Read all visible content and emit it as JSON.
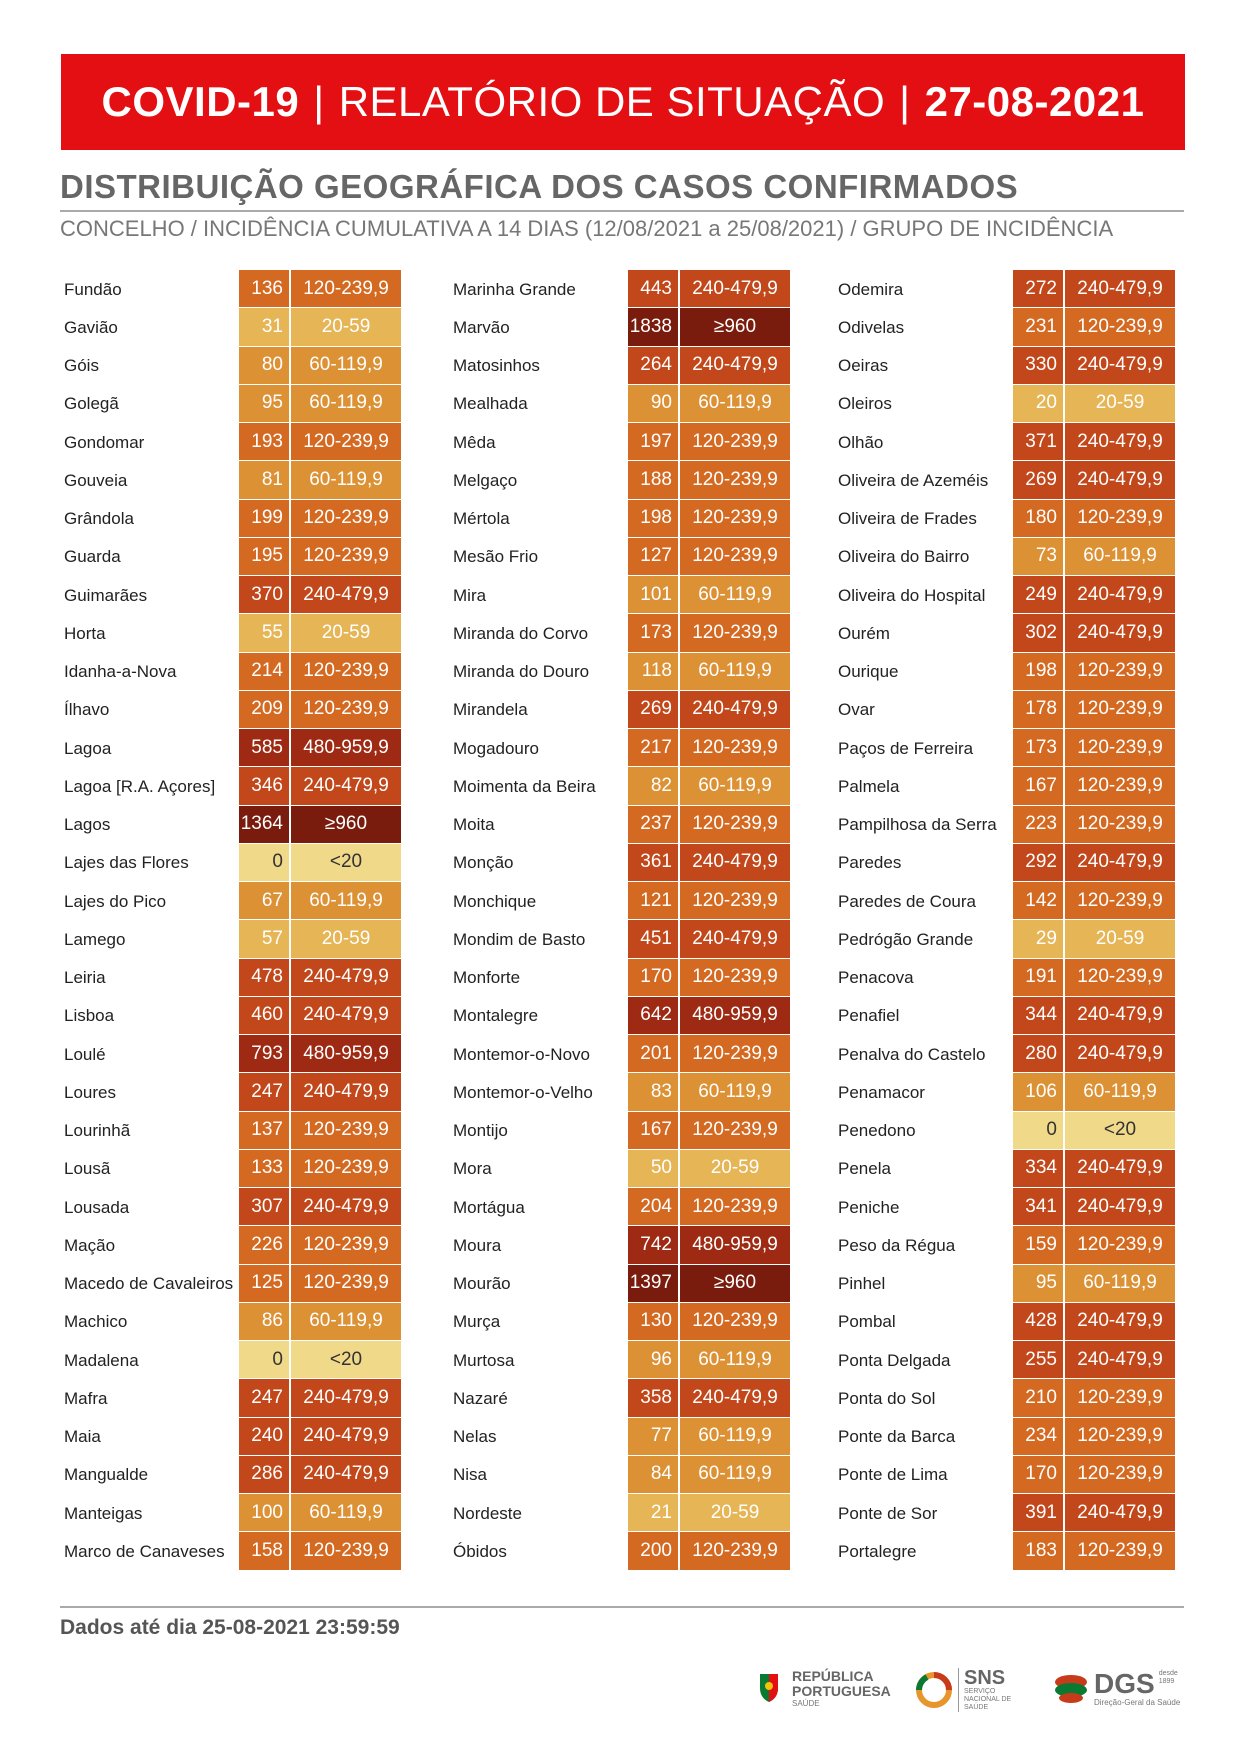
{
  "header": {
    "part1": "COVID-19",
    "part2": "RELATÓRIO DE SITUAÇÃO",
    "part3": "27-08-2021",
    "sep": "|"
  },
  "subtitle": "DISTRIBUIÇÃO GEOGRÁFICA DOS CASOS CONFIRMADOS",
  "subsubtitle": "CONCELHO / INCIDÊNCIA CUMULATIVA A 14 DIAS (12/08/2021 a 25/08/2021) / GRUPO DE INCIDÊNCIA",
  "colors": {
    "lt20": "#f1d98a",
    "20-59": "#e6b556",
    "60-119,9": "#dc9135",
    "120-239,9": "#d46a22",
    "240-479,9": "#c2471a",
    "480-959,9": "#9e2a14",
    "ge960": "#7a1c0d"
  },
  "columns": [
    [
      {
        "name": "Fundão",
        "value": "136",
        "group": "120-239,9"
      },
      {
        "name": "Gavião",
        "value": "31",
        "group": "20-59"
      },
      {
        "name": "Góis",
        "value": "80",
        "group": "60-119,9"
      },
      {
        "name": "Golegã",
        "value": "95",
        "group": "60-119,9"
      },
      {
        "name": "Gondomar",
        "value": "193",
        "group": "120-239,9"
      },
      {
        "name": "Gouveia",
        "value": "81",
        "group": "60-119,9"
      },
      {
        "name": "Grândola",
        "value": "199",
        "group": "120-239,9"
      },
      {
        "name": "Guarda",
        "value": "195",
        "group": "120-239,9"
      },
      {
        "name": "Guimarães",
        "value": "370",
        "group": "240-479,9"
      },
      {
        "name": "Horta",
        "value": "55",
        "group": "20-59"
      },
      {
        "name": "Idanha-a-Nova",
        "value": "214",
        "group": "120-239,9"
      },
      {
        "name": "Ílhavo",
        "value": "209",
        "group": "120-239,9"
      },
      {
        "name": "Lagoa",
        "value": "585",
        "group": "480-959,9"
      },
      {
        "name": "Lagoa [R.A. Açores]",
        "value": "346",
        "group": "240-479,9"
      },
      {
        "name": "Lagos",
        "value": "1364",
        "group": "≥960"
      },
      {
        "name": "Lajes das Flores",
        "value": "0",
        "group": "<20"
      },
      {
        "name": "Lajes do Pico",
        "value": "67",
        "group": "60-119,9"
      },
      {
        "name": "Lamego",
        "value": "57",
        "group": "20-59"
      },
      {
        "name": "Leiria",
        "value": "478",
        "group": "240-479,9"
      },
      {
        "name": "Lisboa",
        "value": "460",
        "group": "240-479,9"
      },
      {
        "name": "Loulé",
        "value": "793",
        "group": "480-959,9"
      },
      {
        "name": "Loures",
        "value": "247",
        "group": "240-479,9"
      },
      {
        "name": "Lourinhã",
        "value": "137",
        "group": "120-239,9"
      },
      {
        "name": "Lousã",
        "value": "133",
        "group": "120-239,9"
      },
      {
        "name": "Lousada",
        "value": "307",
        "group": "240-479,9"
      },
      {
        "name": "Mação",
        "value": "226",
        "group": "120-239,9"
      },
      {
        "name": "Macedo de Cavaleiros",
        "value": "125",
        "group": "120-239,9"
      },
      {
        "name": "Machico",
        "value": "86",
        "group": "60-119,9"
      },
      {
        "name": "Madalena",
        "value": "0",
        "group": "<20"
      },
      {
        "name": "Mafra",
        "value": "247",
        "group": "240-479,9"
      },
      {
        "name": "Maia",
        "value": "240",
        "group": "240-479,9"
      },
      {
        "name": "Mangualde",
        "value": "286",
        "group": "240-479,9"
      },
      {
        "name": "Manteigas",
        "value": "100",
        "group": "60-119,9"
      },
      {
        "name": "Marco de Canaveses",
        "value": "158",
        "group": "120-239,9"
      }
    ],
    [
      {
        "name": "Marinha Grande",
        "value": "443",
        "group": "240-479,9"
      },
      {
        "name": "Marvão",
        "value": "1838",
        "group": "≥960"
      },
      {
        "name": "Matosinhos",
        "value": "264",
        "group": "240-479,9"
      },
      {
        "name": "Mealhada",
        "value": "90",
        "group": "60-119,9"
      },
      {
        "name": "Mêda",
        "value": "197",
        "group": "120-239,9"
      },
      {
        "name": "Melgaço",
        "value": "188",
        "group": "120-239,9"
      },
      {
        "name": "Mértola",
        "value": "198",
        "group": "120-239,9"
      },
      {
        "name": "Mesão Frio",
        "value": "127",
        "group": "120-239,9"
      },
      {
        "name": "Mira",
        "value": "101",
        "group": "60-119,9"
      },
      {
        "name": "Miranda do Corvo",
        "value": "173",
        "group": "120-239,9"
      },
      {
        "name": "Miranda do Douro",
        "value": "118",
        "group": "60-119,9"
      },
      {
        "name": "Mirandela",
        "value": "269",
        "group": "240-479,9"
      },
      {
        "name": "Mogadouro",
        "value": "217",
        "group": "120-239,9"
      },
      {
        "name": "Moimenta da Beira",
        "value": "82",
        "group": "60-119,9"
      },
      {
        "name": "Moita",
        "value": "237",
        "group": "120-239,9"
      },
      {
        "name": "Monção",
        "value": "361",
        "group": "240-479,9"
      },
      {
        "name": "Monchique",
        "value": "121",
        "group": "120-239,9"
      },
      {
        "name": "Mondim de Basto",
        "value": "451",
        "group": "240-479,9"
      },
      {
        "name": "Monforte",
        "value": "170",
        "group": "120-239,9"
      },
      {
        "name": "Montalegre",
        "value": "642",
        "group": "480-959,9"
      },
      {
        "name": "Montemor-o-Novo",
        "value": "201",
        "group": "120-239,9"
      },
      {
        "name": "Montemor-o-Velho",
        "value": "83",
        "group": "60-119,9"
      },
      {
        "name": "Montijo",
        "value": "167",
        "group": "120-239,9"
      },
      {
        "name": "Mora",
        "value": "50",
        "group": "20-59"
      },
      {
        "name": "Mortágua",
        "value": "204",
        "group": "120-239,9"
      },
      {
        "name": "Moura",
        "value": "742",
        "group": "480-959,9"
      },
      {
        "name": "Mourão",
        "value": "1397",
        "group": "≥960"
      },
      {
        "name": "Murça",
        "value": "130",
        "group": "120-239,9"
      },
      {
        "name": "Murtosa",
        "value": "96",
        "group": "60-119,9"
      },
      {
        "name": "Nazaré",
        "value": "358",
        "group": "240-479,9"
      },
      {
        "name": "Nelas",
        "value": "77",
        "group": "60-119,9"
      },
      {
        "name": "Nisa",
        "value": "84",
        "group": "60-119,9"
      },
      {
        "name": "Nordeste",
        "value": "21",
        "group": "20-59"
      },
      {
        "name": "Óbidos",
        "value": "200",
        "group": "120-239,9"
      }
    ],
    [
      {
        "name": "Odemira",
        "value": "272",
        "group": "240-479,9"
      },
      {
        "name": "Odivelas",
        "value": "231",
        "group": "120-239,9"
      },
      {
        "name": "Oeiras",
        "value": "330",
        "group": "240-479,9"
      },
      {
        "name": "Oleiros",
        "value": "20",
        "group": "20-59"
      },
      {
        "name": "Olhão",
        "value": "371",
        "group": "240-479,9"
      },
      {
        "name": "Oliveira de Azeméis",
        "value": "269",
        "group": "240-479,9"
      },
      {
        "name": "Oliveira de Frades",
        "value": "180",
        "group": "120-239,9"
      },
      {
        "name": "Oliveira do Bairro",
        "value": "73",
        "group": "60-119,9"
      },
      {
        "name": "Oliveira do Hospital",
        "value": "249",
        "group": "240-479,9"
      },
      {
        "name": "Ourém",
        "value": "302",
        "group": "240-479,9"
      },
      {
        "name": "Ourique",
        "value": "198",
        "group": "120-239,9"
      },
      {
        "name": "Ovar",
        "value": "178",
        "group": "120-239,9"
      },
      {
        "name": "Paços de Ferreira",
        "value": "173",
        "group": "120-239,9"
      },
      {
        "name": "Palmela",
        "value": "167",
        "group": "120-239,9"
      },
      {
        "name": "Pampilhosa da Serra",
        "value": "223",
        "group": "120-239,9"
      },
      {
        "name": "Paredes",
        "value": "292",
        "group": "240-479,9"
      },
      {
        "name": "Paredes de Coura",
        "value": "142",
        "group": "120-239,9"
      },
      {
        "name": "Pedrógão Grande",
        "value": "29",
        "group": "20-59"
      },
      {
        "name": "Penacova",
        "value": "191",
        "group": "120-239,9"
      },
      {
        "name": "Penafiel",
        "value": "344",
        "group": "240-479,9"
      },
      {
        "name": "Penalva do Castelo",
        "value": "280",
        "group": "240-479,9"
      },
      {
        "name": "Penamacor",
        "value": "106",
        "group": "60-119,9"
      },
      {
        "name": "Penedono",
        "value": "0",
        "group": "<20"
      },
      {
        "name": "Penela",
        "value": "334",
        "group": "240-479,9"
      },
      {
        "name": "Peniche",
        "value": "341",
        "group": "240-479,9"
      },
      {
        "name": "Peso da Régua",
        "value": "159",
        "group": "120-239,9"
      },
      {
        "name": "Pinhel",
        "value": "95",
        "group": "60-119,9"
      },
      {
        "name": "Pombal",
        "value": "428",
        "group": "240-479,9"
      },
      {
        "name": "Ponta Delgada",
        "value": "255",
        "group": "240-479,9"
      },
      {
        "name": "Ponta do Sol",
        "value": "210",
        "group": "120-239,9"
      },
      {
        "name": "Ponte da Barca",
        "value": "234",
        "group": "120-239,9"
      },
      {
        "name": "Ponte de Lima",
        "value": "170",
        "group": "120-239,9"
      },
      {
        "name": "Ponte de Sor",
        "value": "391",
        "group": "240-479,9"
      },
      {
        "name": "Portalegre",
        "value": "183",
        "group": "120-239,9"
      }
    ]
  ],
  "footer": "Dados até dia 25-08-2021 23:59:59",
  "logos": {
    "republica": "REPÚBLICA PORTUGUESA",
    "republica_sub": "SAÚDE",
    "sns": "SNS",
    "sns_sub": "SERVIÇO NACIONAL DE SAÚDE",
    "dgs": "DGS",
    "dgs_since": "desde 1899",
    "dgs_sub": "Direção-Geral da Saúde"
  }
}
